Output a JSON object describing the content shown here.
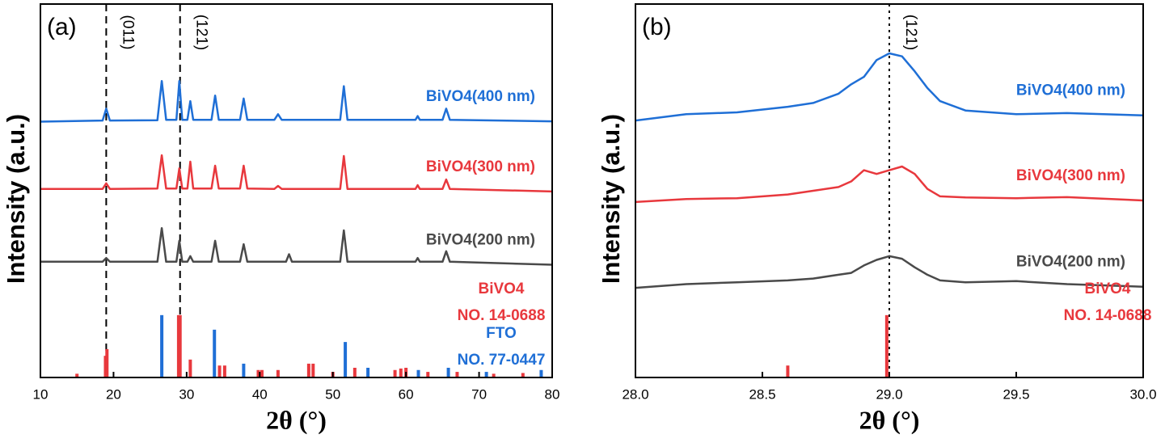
{
  "chart_data": [
    {
      "type": "line",
      "panel_label": "(a)",
      "x_label": "2θ (°)",
      "y_label": "Intensity (a.u.)",
      "xlim": [
        10,
        80
      ],
      "xticks": [
        10,
        20,
        30,
        40,
        50,
        60,
        70,
        80
      ],
      "ylim": [
        0,
        100
      ],
      "annotation_line": "dashed",
      "x": [
        10,
        18.5,
        19,
        19.5,
        26,
        26.6,
        27.2,
        28.6,
        29,
        29.4,
        30.1,
        30.5,
        30.9,
        33.4,
        33.9,
        34.4,
        37.3,
        37.8,
        38.3,
        42,
        42.5,
        43,
        43.6,
        44,
        44.4,
        51,
        51.5,
        52,
        61.3,
        61.6,
        61.9,
        65,
        65.5,
        66,
        80
      ],
      "series": [
        {
          "name": "BiVO4(400 nm)",
          "color": "#1f6fd6",
          "values": [
            68.5,
            68.8,
            72,
            68.8,
            68.9,
            79.4,
            69,
            69,
            79.4,
            69,
            69,
            74,
            69,
            69,
            75.5,
            69,
            69,
            74.7,
            69,
            69,
            70.5,
            69,
            69,
            69,
            69,
            69,
            78,
            69,
            69,
            70,
            69,
            69,
            72,
            69,
            68.6
          ]
        },
        {
          "name": "BiVO4(300 nm)",
          "color": "#e8383d",
          "values": [
            50.5,
            50.5,
            52,
            50.5,
            50.6,
            59.5,
            50.6,
            50.6,
            56,
            50.6,
            50.6,
            57.8,
            50.6,
            50.6,
            56.7,
            50.6,
            50.6,
            56.7,
            50.6,
            50.5,
            51.3,
            50.5,
            50.5,
            50.5,
            50.5,
            50.5,
            59.3,
            50.5,
            50.5,
            51.5,
            50.5,
            50.5,
            53,
            50.5,
            49.8
          ]
        },
        {
          "name": "BiVO4(200 nm)",
          "color": "#4a4a4a",
          "values": [
            31,
            31,
            32,
            31,
            31,
            40,
            31,
            31,
            36.6,
            31,
            31,
            32.5,
            31,
            31,
            36.6,
            31,
            31,
            35.7,
            31,
            31,
            31,
            31,
            31,
            33,
            31,
            31,
            39.4,
            31,
            31,
            32,
            31,
            31,
            33.8,
            31,
            30.2
          ]
        }
      ],
      "references": [
        {
          "name": "BiVO4",
          "code": "NO. 14-0688",
          "color": "#e8383d",
          "x": [
            15,
            18.9,
            19.1,
            28.9,
            29.1,
            30.5,
            34.5,
            35.2,
            39.8,
            40.3,
            42.5,
            46.7,
            47.3,
            50,
            53,
            58.5,
            59.3,
            60,
            63,
            67,
            72,
            76
          ],
          "values": [
            1,
            5.8,
            7.6,
            16.7,
            16.7,
            4.8,
            3.2,
            3.2,
            2,
            2,
            2,
            3.7,
            3.7,
            1.5,
            2.6,
            2,
            2.4,
            2.6,
            1.5,
            1.5,
            1,
            1.2
          ]
        },
        {
          "name": "FTO",
          "code": "NO. 77-0447",
          "color": "#1f6fd6",
          "x": [
            26.6,
            33.8,
            37.8,
            51.7,
            54.8,
            61.7,
            65.8,
            71,
            78.5
          ],
          "values": [
            16.7,
            12.8,
            3.7,
            9.5,
            2.6,
            2,
            2.6,
            1.5,
            2
          ]
        }
      ],
      "annotations": [
        {
          "text": "(011)",
          "x": 19
        },
        {
          "text": "(121)",
          "x": 29.1
        }
      ]
    },
    {
      "type": "line",
      "panel_label": "(b)",
      "x_label": "2θ (°)",
      "y_label": "Intensity (a.u.)",
      "xlim": [
        28,
        30
      ],
      "xticks": [
        {
          "value": 28,
          "label": "28.0"
        },
        {
          "value": 28.5,
          "label": "28.5"
        },
        {
          "value": 29,
          "label": "29.0"
        },
        {
          "value": 29.5,
          "label": "29.5"
        },
        {
          "value": 30,
          "label": "30.0"
        }
      ],
      "ylim": [
        0,
        100
      ],
      "annotation_line": "dotted",
      "x": [
        28.0,
        28.2,
        28.4,
        28.6,
        28.7,
        28.8,
        28.85,
        28.9,
        28.95,
        29.0,
        29.05,
        29.1,
        29.15,
        29.2,
        29.3,
        29.5,
        29.7,
        30.0
      ],
      "series": [
        {
          "name": "BiVO4(400 nm)",
          "color": "#1f6fd6",
          "values": [
            68.8,
            70.5,
            71,
            72.5,
            73.5,
            76,
            78.5,
            80.5,
            85,
            86.8,
            86,
            82,
            77.5,
            74,
            71.5,
            70.5,
            70.8,
            70.2
          ]
        },
        {
          "name": "BiVO4(300 nm)",
          "color": "#e8383d",
          "values": [
            47,
            47.8,
            48,
            49,
            50,
            51,
            52.5,
            55.5,
            54.5,
            55.5,
            56.5,
            54.5,
            50.5,
            48.5,
            48.2,
            48,
            48.3,
            47.4
          ]
        },
        {
          "name": "BiVO4(200 nm)",
          "color": "#4a4a4a",
          "values": [
            24,
            25,
            25.5,
            26,
            26.5,
            27.5,
            28,
            30,
            31.5,
            32.5,
            31.8,
            29.5,
            27.5,
            26,
            25.5,
            25.8,
            25,
            24.3
          ]
        }
      ],
      "references": [
        {
          "name": "BiVO4",
          "code": "NO. 14-0688",
          "color": "#e8383d",
          "x": [
            28.6,
            28.99
          ],
          "values": [
            3.2,
            16.7
          ]
        }
      ],
      "annotations": [
        {
          "text": "(121)",
          "x": 29.0
        }
      ]
    }
  ]
}
